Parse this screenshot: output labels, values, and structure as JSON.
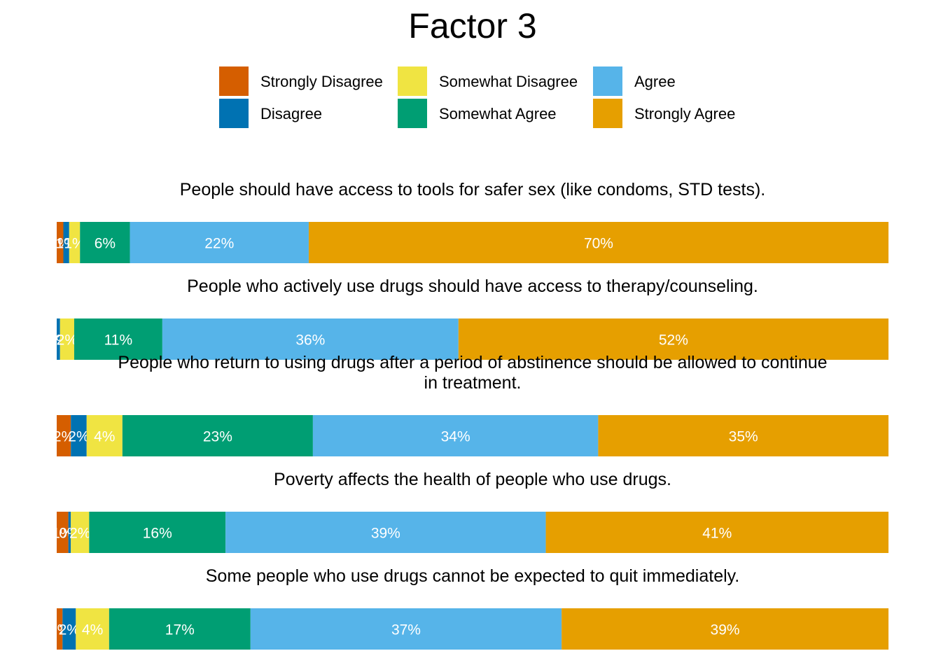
{
  "chart_data": {
    "type": "bar",
    "stacked": "horizontal-100-percent",
    "title": "Factor 3",
    "legend": {
      "placement": "top",
      "entries": [
        {
          "label": "Strongly Disagree",
          "color": "#D55E00"
        },
        {
          "label": "Disagree",
          "color": "#0072B2"
        },
        {
          "label": "Somewhat Disagree",
          "color": "#F0E442"
        },
        {
          "label": "Somewhat Agree",
          "color": "#009E73"
        },
        {
          "label": "Agree",
          "color": "#56B4E9"
        },
        {
          "label": "Strongly Agree",
          "color": "#E69F00"
        }
      ]
    },
    "series_order": [
      "Strongly Disagree",
      "Disagree",
      "Somewhat Disagree",
      "Somewhat Agree",
      "Agree",
      "Strongly Agree"
    ],
    "items": [
      {
        "question": "People should have access to tools for safer sex (like condoms, STD tests).",
        "values": [
          0.8,
          0.7,
          1.3,
          6.0,
          21.5,
          69.7
        ],
        "labels": [
          "1%",
          "1%",
          "1%",
          "6%",
          "22%",
          "70%"
        ]
      },
      {
        "question": "People who actively use drugs should have access to therapy/counseling.",
        "values": [
          0.0,
          0.4,
          1.7,
          10.6,
          35.6,
          51.7
        ],
        "labels": [
          "0%",
          "0%",
          "2%",
          "11%",
          "36%",
          "52%"
        ]
      },
      {
        "question": "People who return to using drugs after a period of abstinence should be allowed to continue in treatment.",
        "values": [
          1.7,
          1.9,
          4.3,
          22.9,
          34.3,
          34.9
        ],
        "labels": [
          "2%",
          "2%",
          "4%",
          "23%",
          "34%",
          "35%"
        ]
      },
      {
        "question": "Poverty affects the health of people who use drugs.",
        "values": [
          1.4,
          0.3,
          2.2,
          16.4,
          38.5,
          41.2
        ],
        "labels": [
          "1%",
          "0%",
          "2%",
          "16%",
          "39%",
          "41%"
        ]
      },
      {
        "question": "Some people who use drugs cannot be expected to quit immediately.",
        "values": [
          0.7,
          1.6,
          4.0,
          17.0,
          37.4,
          39.3
        ],
        "labels": [
          "1%",
          "2%",
          "4%",
          "17%",
          "37%",
          "39%"
        ]
      }
    ],
    "xlim": [
      0,
      100
    ],
    "grid": false
  }
}
